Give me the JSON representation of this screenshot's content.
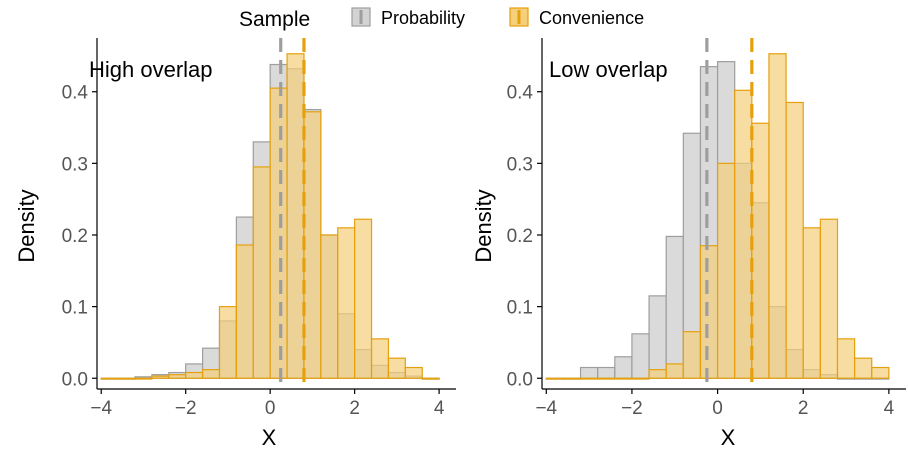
{
  "legend": {
    "title": "Sample",
    "items": [
      {
        "label": "Probability",
        "fill": "#D3D3D3",
        "stroke": "#9E9E9E"
      },
      {
        "label": "Convenience",
        "fill": "#F5CF7A",
        "stroke": "#E5A00D"
      }
    ],
    "position": "top"
  },
  "chart_data": [
    {
      "type": "bar",
      "panel_label": "High overlap",
      "xlabel": "X",
      "ylabel": "Density",
      "xlim": [
        -4.1,
        4.4
      ],
      "ylim": [
        -0.015,
        0.475
      ],
      "x_ticks": [
        -4,
        -2,
        0,
        2,
        4
      ],
      "y_ticks": [
        0.0,
        0.1,
        0.2,
        0.3,
        0.4
      ],
      "bin_edges": [
        -4.0,
        -3.6,
        -3.2,
        -2.8,
        -2.4,
        -2.0,
        -1.6,
        -1.2,
        -0.8,
        -0.4,
        0.0,
        0.4,
        0.8,
        1.2,
        1.6,
        2.0,
        2.4,
        2.8,
        3.2,
        3.6,
        4.0
      ],
      "series": [
        {
          "name": "Probability",
          "values": [
            0.0,
            0.0,
            0.002,
            0.005,
            0.008,
            0.02,
            0.042,
            0.08,
            0.225,
            0.33,
            0.438,
            0.432,
            0.375,
            0.2,
            0.09,
            0.04,
            0.018,
            0.008,
            0.003,
            0.0
          ],
          "mean": 0.25
        },
        {
          "name": "Convenience",
          "values": [
            0.0,
            0.0,
            0.0,
            0.003,
            0.005,
            0.008,
            0.012,
            0.1,
            0.186,
            0.295,
            0.405,
            0.453,
            0.372,
            0.2,
            0.21,
            0.222,
            0.055,
            0.028,
            0.015,
            0.0
          ],
          "mean": 0.8
        }
      ]
    },
    {
      "type": "bar",
      "panel_label": "Low overlap",
      "xlabel": "X",
      "ylabel": "Density",
      "xlim": [
        -4.1,
        4.4
      ],
      "ylim": [
        -0.015,
        0.475
      ],
      "x_ticks": [
        -4,
        -2,
        0,
        2,
        4
      ],
      "y_ticks": [
        0.0,
        0.1,
        0.2,
        0.3,
        0.4
      ],
      "bin_edges": [
        -4.0,
        -3.6,
        -3.2,
        -2.8,
        -2.4,
        -2.0,
        -1.6,
        -1.2,
        -0.8,
        -0.4,
        0.0,
        0.4,
        0.8,
        1.2,
        1.6,
        2.0,
        2.4,
        2.8,
        3.2,
        3.6,
        4.0
      ],
      "series": [
        {
          "name": "Probability",
          "values": [
            0.0,
            0.0,
            0.015,
            0.015,
            0.03,
            0.062,
            0.115,
            0.198,
            0.342,
            0.435,
            0.442,
            0.3,
            0.245,
            0.1,
            0.04,
            0.012,
            0.005,
            0.0,
            0.0,
            0.0
          ],
          "mean": -0.25
        },
        {
          "name": "Convenience",
          "values": [
            0.0,
            0.0,
            0.0,
            0.0,
            0.0,
            0.0,
            0.012,
            0.02,
            0.065,
            0.185,
            0.3,
            0.402,
            0.356,
            0.453,
            0.385,
            0.21,
            0.222,
            0.055,
            0.028,
            0.015
          ],
          "mean": 0.8
        }
      ]
    }
  ]
}
